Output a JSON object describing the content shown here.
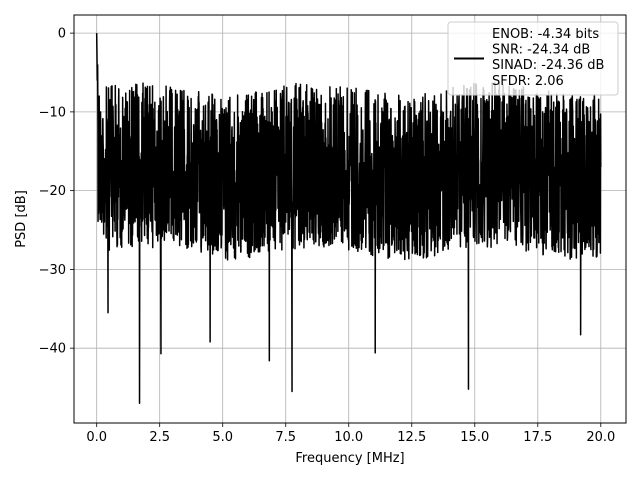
{
  "chart_data": {
    "type": "line",
    "title": "",
    "xlabel": "Frequency [MHz]",
    "ylabel": "PSD [dB]",
    "xlim": [
      -0.9,
      21.0
    ],
    "ylim": [
      -49.5,
      2.3
    ],
    "xticks": [
      0.0,
      2.5,
      5.0,
      7.5,
      10.0,
      12.5,
      15.0,
      17.5,
      20.0
    ],
    "xtick_labels": [
      "0.0",
      "2.5",
      "5.0",
      "7.5",
      "10.0",
      "12.5",
      "15.0",
      "17.5",
      "20.0"
    ],
    "yticks": [
      0,
      -10,
      -20,
      -30,
      -40
    ],
    "ytick_labels": [
      "0",
      "−10",
      "−20",
      "−30",
      "−40"
    ],
    "grid": true,
    "legend_position": "top-right",
    "series": [
      {
        "name": "ENOB: -4.34 bits\nSNR: -24.34 dB\nSINAD: -24.36 dB\nSFDR: 2.06",
        "color": "#000000",
        "description_points": [
          [
            0.0,
            0.0
          ],
          [
            0.05,
            -12.0
          ],
          [
            0.1,
            -8.0
          ],
          [
            0.2,
            -24.0
          ],
          [
            0.45,
            -35.5
          ],
          [
            1.7,
            -47.0
          ],
          [
            2.55,
            -40.7
          ],
          [
            4.5,
            -39.2
          ],
          [
            6.85,
            -41.6
          ],
          [
            7.75,
            -45.5
          ],
          [
            11.05,
            -40.6
          ],
          [
            14.75,
            -45.2
          ],
          [
            19.2,
            -38.3
          ],
          [
            20.0,
            -17.0
          ]
        ],
        "envelope": {
          "x_range": [
            0.0,
            20.0
          ],
          "typical_upper": -7,
          "typical_lower": -28,
          "max_upper": -2.3,
          "min_lower": -47.0
        }
      }
    ]
  }
}
